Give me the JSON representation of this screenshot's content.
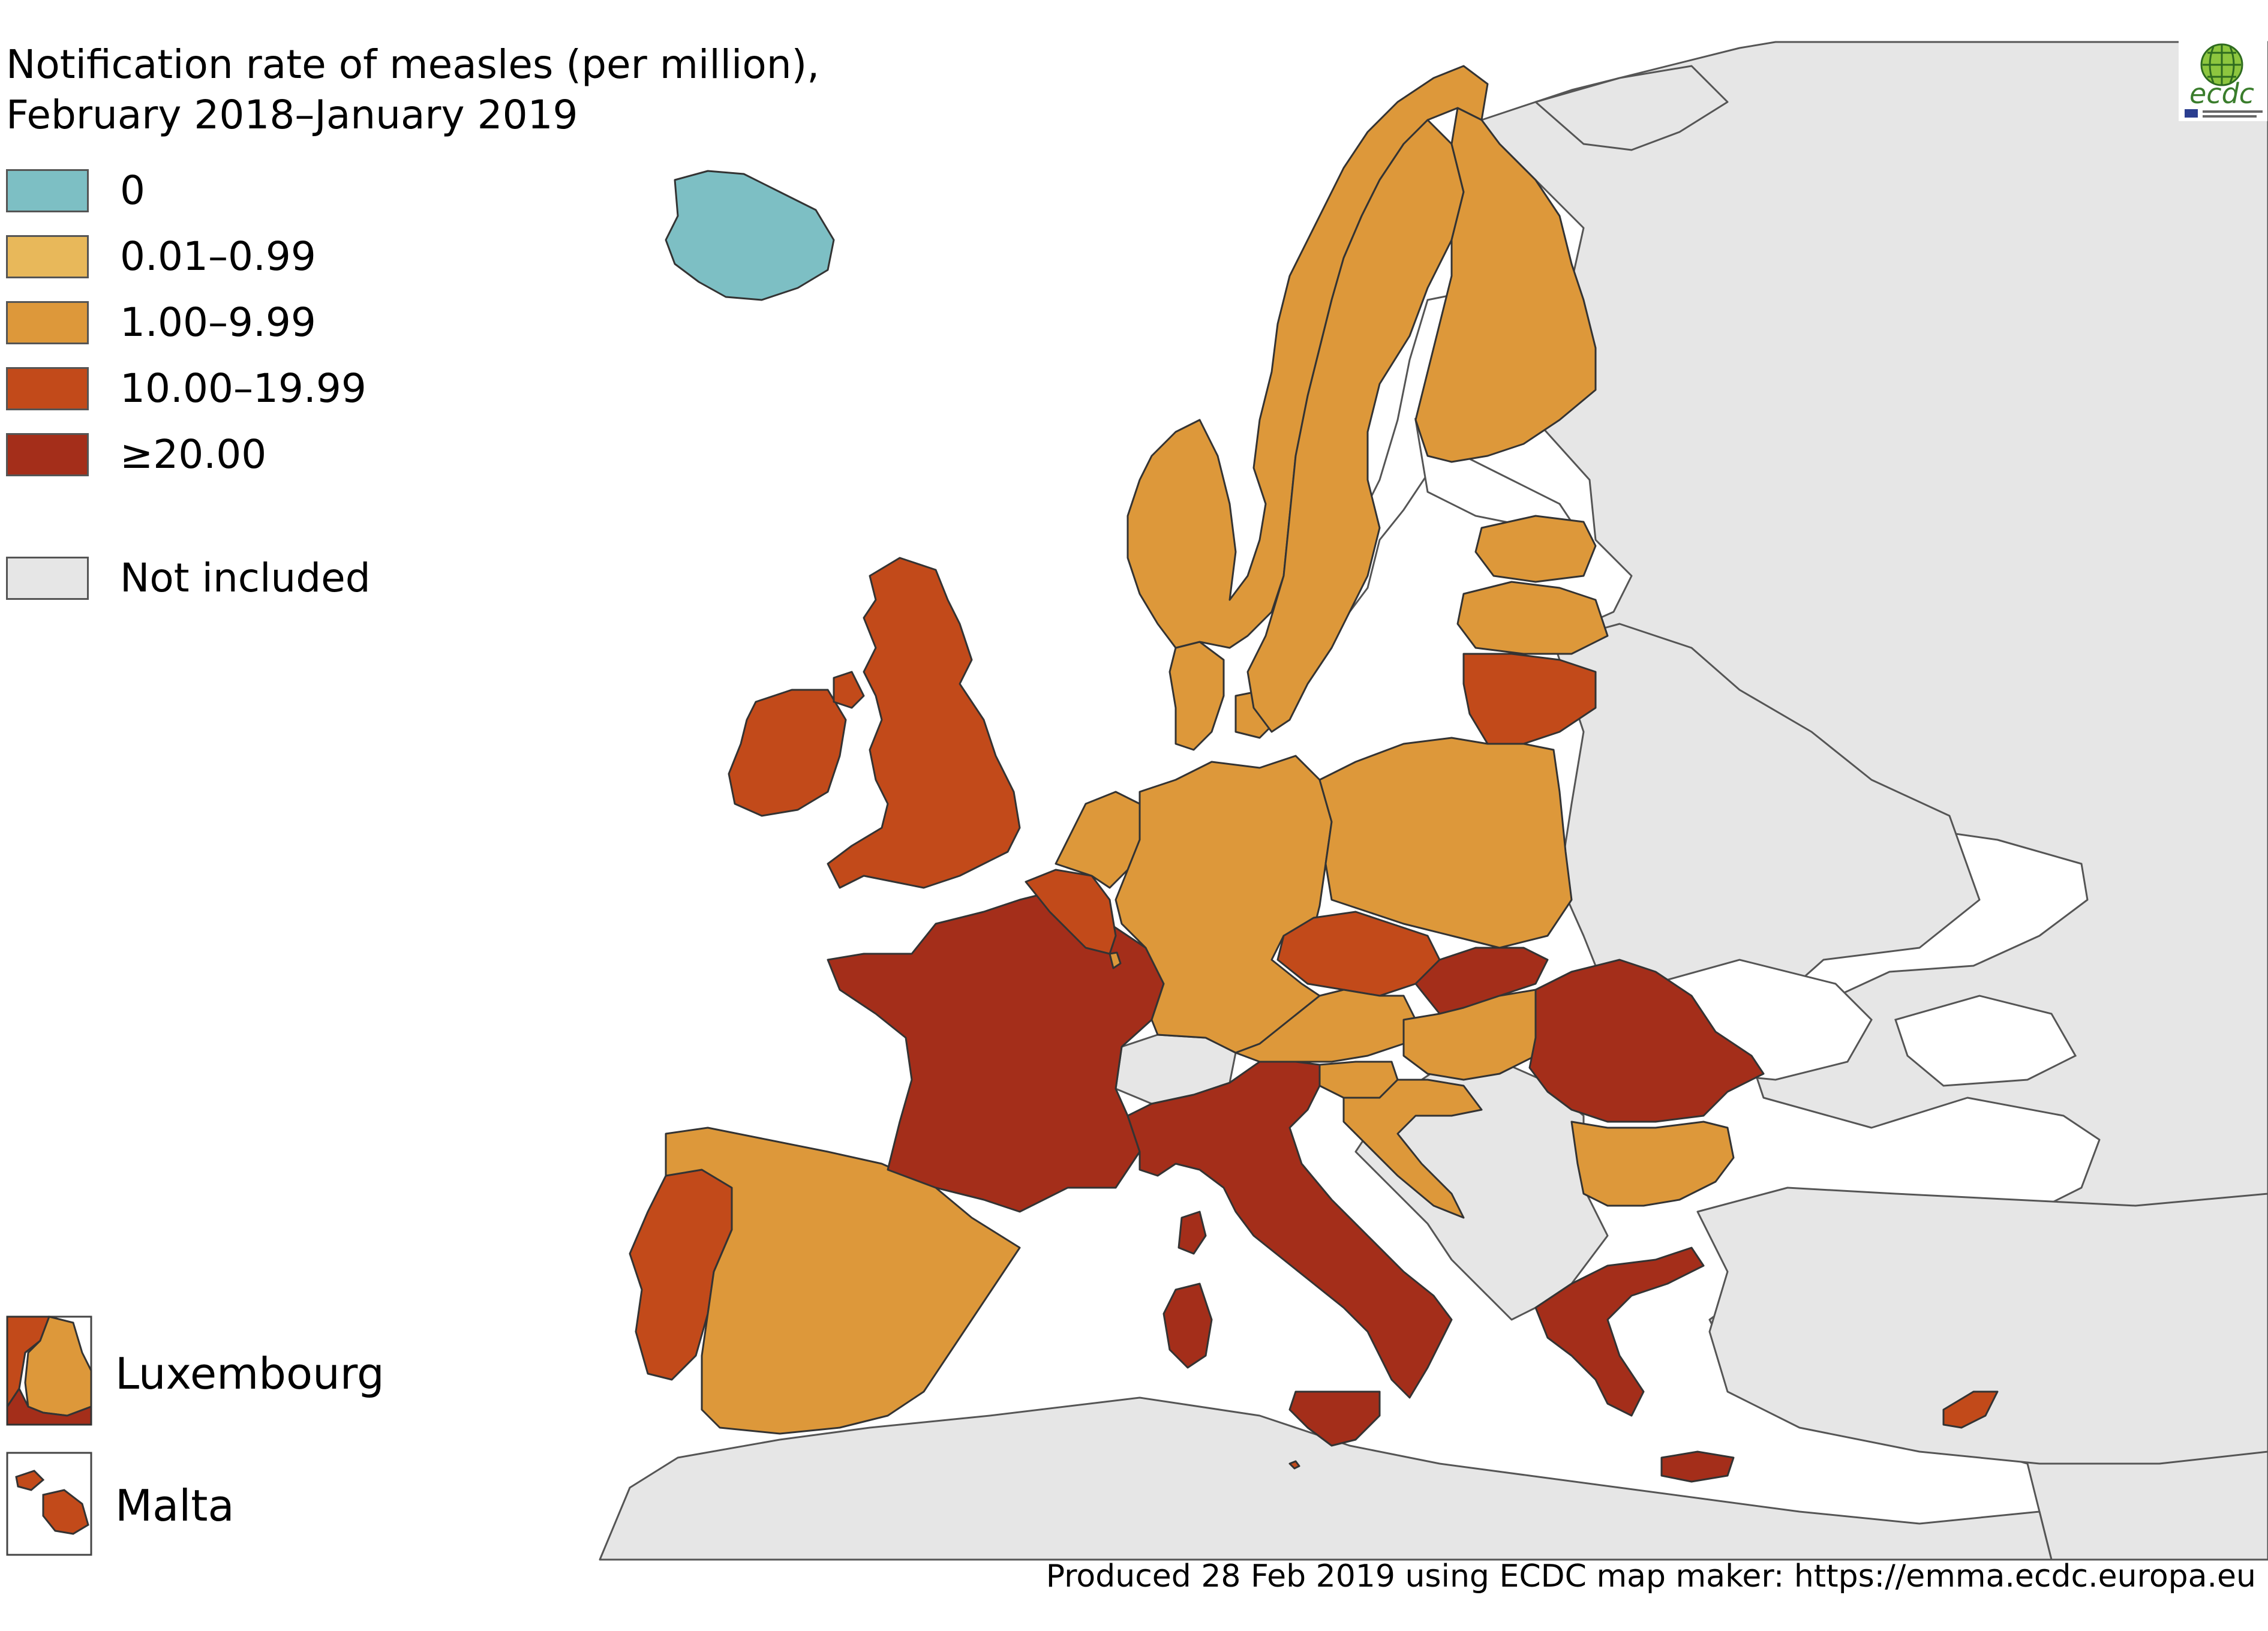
{
  "title_line1": "Notification rate of measles (per million),",
  "title_line2": "February 2018–January 2019",
  "legend": [
    {
      "label": "0",
      "color": "#7dbfc4"
    },
    {
      "label": "0.01–0.99",
      "color": "#e8b85a"
    },
    {
      "label": "1.00–9.99",
      "color": "#dd983a"
    },
    {
      "label": "10.00–19.99",
      "color": "#c24a1a"
    },
    {
      "label": "≥20.00",
      "color": "#a42e1a"
    },
    {
      "label": "Not included",
      "color": "#e6e6e6"
    }
  ],
  "insets": [
    {
      "label": "Luxembourg",
      "category": "1.00–9.99"
    },
    {
      "label": "Malta",
      "category": "10.00–19.99"
    }
  ],
  "credit": "Produced 28 Feb 2019 using ECDC map maker: https://emma.ecdc.europa.eu",
  "logo": {
    "text": "ecdc",
    "icon": "ecdc-globe-icon"
  },
  "countries": [
    {
      "name": "Iceland",
      "category": "0"
    },
    {
      "name": "Ireland",
      "category": "10.00–19.99"
    },
    {
      "name": "United Kingdom",
      "category": "10.00–19.99"
    },
    {
      "name": "Portugal",
      "category": "10.00–19.99"
    },
    {
      "name": "Spain",
      "category": "1.00–9.99"
    },
    {
      "name": "France",
      "category": "≥20.00"
    },
    {
      "name": "Belgium",
      "category": "10.00–19.99"
    },
    {
      "name": "Netherlands",
      "category": "1.00–9.99"
    },
    {
      "name": "Germany",
      "category": "1.00–9.99"
    },
    {
      "name": "Denmark",
      "category": "1.00–9.99"
    },
    {
      "name": "Norway",
      "category": "1.00–9.99"
    },
    {
      "name": "Sweden",
      "category": "1.00–9.99"
    },
    {
      "name": "Finland",
      "category": "1.00–9.99"
    },
    {
      "name": "Estonia",
      "category": "1.00–9.99"
    },
    {
      "name": "Latvia",
      "category": "1.00–9.99"
    },
    {
      "name": "Lithuania",
      "category": "10.00–19.99"
    },
    {
      "name": "Poland",
      "category": "1.00–9.99"
    },
    {
      "name": "Czechia",
      "category": "10.00–19.99"
    },
    {
      "name": "Slovakia",
      "category": "≥20.00"
    },
    {
      "name": "Austria",
      "category": "1.00–9.99"
    },
    {
      "name": "Hungary",
      "category": "1.00–9.99"
    },
    {
      "name": "Slovenia",
      "category": "1.00–9.99"
    },
    {
      "name": "Croatia",
      "category": "1.00–9.99"
    },
    {
      "name": "Italy",
      "category": "≥20.00"
    },
    {
      "name": "Romania",
      "category": "≥20.00"
    },
    {
      "name": "Bulgaria",
      "category": "1.00–9.99"
    },
    {
      "name": "Greece",
      "category": "≥20.00"
    },
    {
      "name": "Cyprus",
      "category": "10.00–19.99"
    },
    {
      "name": "Luxembourg",
      "category": "1.00–9.99"
    },
    {
      "name": "Malta",
      "category": "10.00–19.99"
    },
    {
      "name": "Switzerland",
      "category": "Not included"
    }
  ]
}
